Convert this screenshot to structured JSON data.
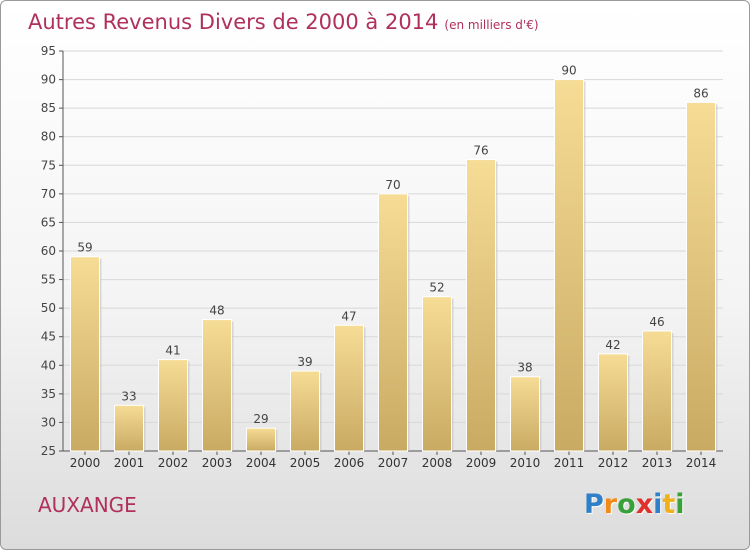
{
  "title": "Autres Revenus Divers de 2000 à 2014",
  "unit": "(en milliers d'€)",
  "commune": "AUXANGE",
  "logo": {
    "letters": [
      "P",
      "r",
      "o",
      "x",
      "i",
      "t",
      "i"
    ],
    "colors": [
      "#2f7fc9",
      "#f08a1a",
      "#3aa13a",
      "#e0302a",
      "#2f7fc9",
      "#f0b01a",
      "#3aa13a"
    ]
  },
  "chart_data": {
    "type": "bar",
    "categories": [
      "2000",
      "2001",
      "2002",
      "2003",
      "2004",
      "2005",
      "2006",
      "2007",
      "2008",
      "2009",
      "2010",
      "2011",
      "2012",
      "2013",
      "2014"
    ],
    "values": [
      59,
      33,
      41,
      48,
      29,
      39,
      47,
      70,
      52,
      76,
      38,
      90,
      42,
      46,
      86
    ],
    "ylim": [
      25,
      95
    ],
    "yticks": [
      25,
      30,
      35,
      40,
      45,
      50,
      55,
      60,
      65,
      70,
      75,
      80,
      85,
      90,
      95
    ],
    "grid": true,
    "bar_color": "#e8c878"
  }
}
